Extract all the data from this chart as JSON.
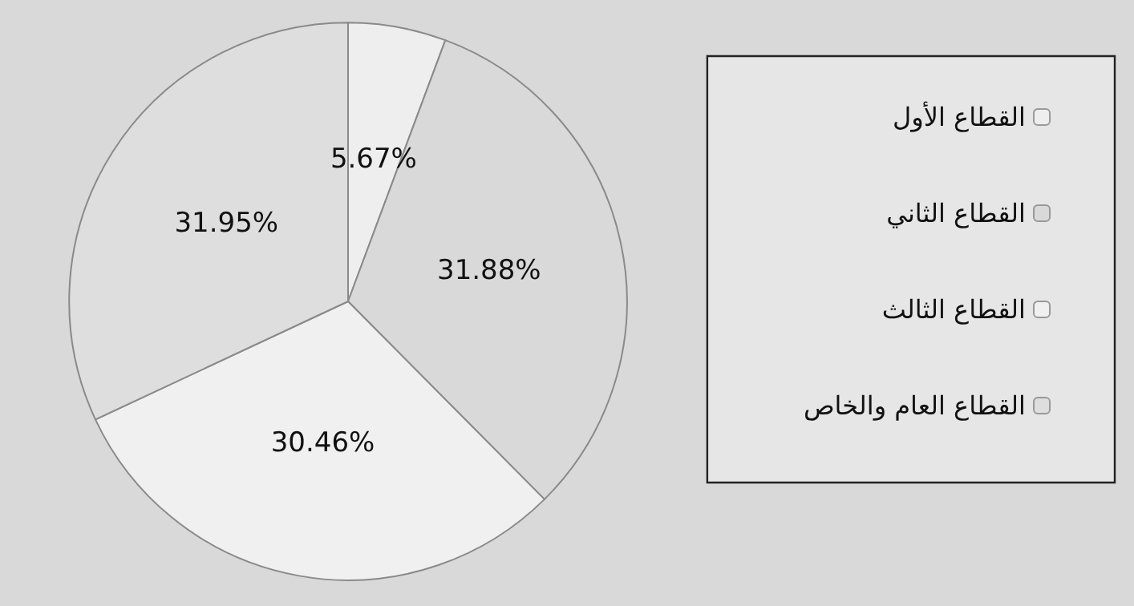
{
  "chart_data": {
    "type": "pie",
    "categories": [
      "القطاع الأول",
      "القطاع الثاني",
      "القطاع الثالث",
      "القطاع العام والخاص"
    ],
    "values": [
      5.67,
      31.88,
      30.46,
      31.95
    ],
    "value_labels": [
      "5.67%",
      "31.88%",
      "30.46%",
      "31.95%"
    ],
    "colors": [
      "#eeeeee",
      "#d9d9d9",
      "#f0f0f0",
      "#dedede"
    ],
    "legend": "right"
  }
}
